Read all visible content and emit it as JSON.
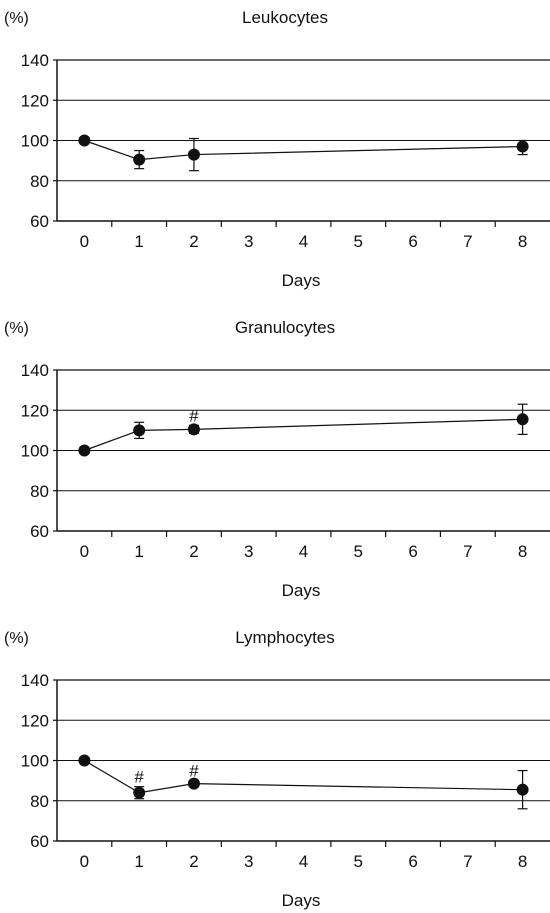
{
  "chart_data": [
    {
      "type": "line",
      "title": "Leukocytes",
      "unit": "(%)",
      "xlabel": "Days",
      "ylabel": "",
      "x_ticks": [
        0,
        1,
        2,
        3,
        4,
        5,
        6,
        7,
        8
      ],
      "y_ticks": [
        60,
        80,
        100,
        120,
        140
      ],
      "xlim": [
        -0.5,
        8.5
      ],
      "ylim": [
        60,
        140
      ],
      "grid": "horizontal",
      "series": [
        {
          "x": [
            0,
            1,
            2,
            8
          ],
          "y": [
            100,
            90.5,
            93,
            97
          ],
          "err_low": [
            100,
            86,
            85,
            93
          ],
          "err_high": [
            100,
            95,
            101,
            100
          ],
          "annotations": [
            "",
            "",
            "",
            ""
          ]
        }
      ]
    },
    {
      "type": "line",
      "title": "Granulocytes",
      "unit": "(%)",
      "xlabel": "Days",
      "ylabel": "",
      "x_ticks": [
        0,
        1,
        2,
        3,
        4,
        5,
        6,
        7,
        8
      ],
      "y_ticks": [
        60,
        80,
        100,
        120,
        140
      ],
      "xlim": [
        -0.5,
        8.5
      ],
      "ylim": [
        60,
        140
      ],
      "grid": "horizontal",
      "series": [
        {
          "x": [
            0,
            1,
            2,
            8
          ],
          "y": [
            100,
            110,
            110.5,
            115.5
          ],
          "err_low": [
            100,
            106,
            108.5,
            108
          ],
          "err_high": [
            100,
            114,
            112.5,
            123
          ],
          "annotations": [
            "",
            "",
            "#",
            ""
          ]
        }
      ]
    },
    {
      "type": "line",
      "title": "Lymphocytes",
      "unit": "(%)",
      "xlabel": "Days",
      "ylabel": "",
      "x_ticks": [
        0,
        1,
        2,
        3,
        4,
        5,
        6,
        7,
        8
      ],
      "y_ticks": [
        60,
        80,
        100,
        120,
        140
      ],
      "xlim": [
        -0.5,
        8.5
      ],
      "ylim": [
        60,
        140
      ],
      "grid": "horizontal",
      "series": [
        {
          "x": [
            0,
            1,
            2,
            8
          ],
          "y": [
            100,
            84,
            88.5,
            85.5
          ],
          "err_low": [
            100,
            81,
            87,
            76
          ],
          "err_high": [
            100,
            87,
            90,
            95
          ],
          "annotations": [
            "",
            "#",
            "#",
            ""
          ]
        }
      ]
    }
  ]
}
